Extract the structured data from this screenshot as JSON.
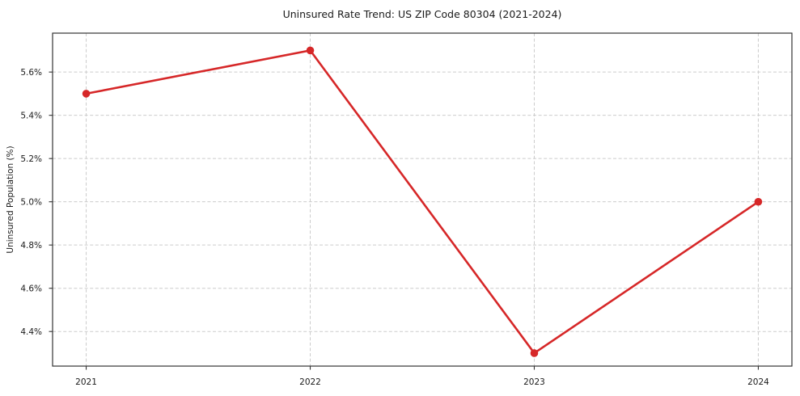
{
  "chart_data": {
    "type": "line",
    "title": "Uninsured Rate Trend: US ZIP Code 80304 (2021-2024)",
    "xlabel": "",
    "ylabel": "Uninsured Population (%)",
    "x": [
      2021,
      2022,
      2023,
      2024
    ],
    "values": [
      5.5,
      5.7,
      4.3,
      5.0
    ],
    "xtick_labels": [
      "2021",
      "2022",
      "2023",
      "2024"
    ],
    "ytick_values": [
      4.4,
      4.6,
      4.8,
      5.0,
      5.2,
      5.4,
      5.6
    ],
    "ytick_labels": [
      "4.4%",
      "4.6%",
      "4.8%",
      "5.0%",
      "5.2%",
      "5.4%",
      "5.6%"
    ],
    "xlim": [
      2020.85,
      2024.15
    ],
    "ylim": [
      4.24,
      5.78
    ],
    "grid": true,
    "grid_style": "dashed",
    "legend": "none",
    "colors": {
      "line": "#d62728",
      "marker": "#d62728",
      "grid": "#cccccc",
      "spine": "#333333",
      "text": "#1a1a1a",
      "background": "#ffffff"
    }
  }
}
